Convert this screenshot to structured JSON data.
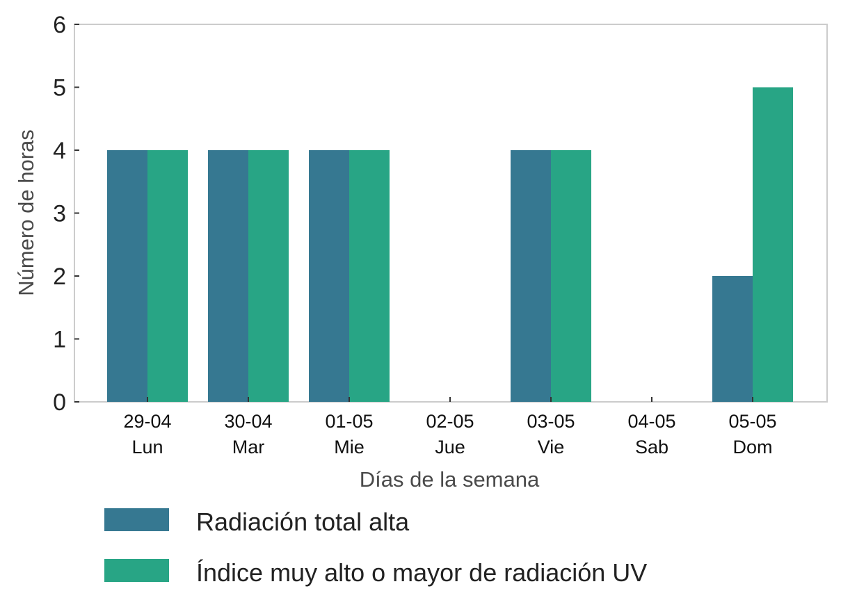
{
  "chart_data": {
    "type": "bar",
    "categories": [
      "29-04 Lun",
      "30-04 Mar",
      "01-05 Mie",
      "02-05 Jue",
      "03-05 Vie",
      "04-05 Sab",
      "05-05 Dom"
    ],
    "category_lines": [
      [
        "29-04",
        "Lun"
      ],
      [
        "30-04",
        "Mar"
      ],
      [
        "01-05",
        "Mie"
      ],
      [
        "02-05",
        "Jue"
      ],
      [
        "03-05",
        "Vie"
      ],
      [
        "04-05",
        "Sab"
      ],
      [
        "05-05",
        "Dom"
      ]
    ],
    "series": [
      {
        "name": "Radiación total alta",
        "color": "#367891",
        "values": [
          4,
          4,
          4,
          0,
          4,
          0,
          2
        ]
      },
      {
        "name": "Índice muy alto o mayor de radiación UV",
        "color": "#28A585",
        "values": [
          4,
          4,
          4,
          0,
          4,
          0,
          5
        ]
      }
    ],
    "xlabel": "Días de la semana",
    "ylabel": "Número de horas",
    "ylim": [
      0,
      6
    ],
    "yticks": [
      "0",
      "1",
      "2",
      "3",
      "4",
      "5",
      "6"
    ],
    "grid": false,
    "legend_position": "bottom"
  }
}
